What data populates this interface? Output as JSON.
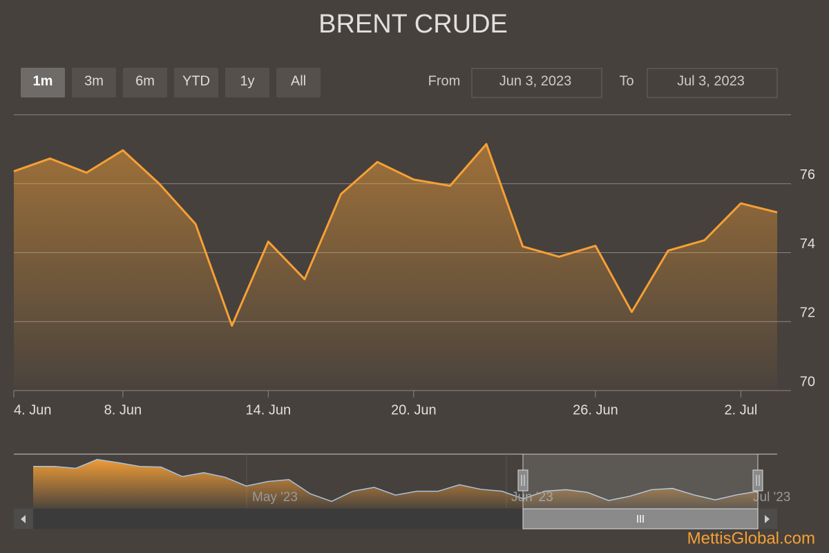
{
  "chart_data": {
    "type": "area",
    "title": "BRENT CRUDE",
    "range_buttons": [
      "1m",
      "3m",
      "6m",
      "YTD",
      "1y",
      "All"
    ],
    "selected_range": 0,
    "from_label": "From",
    "from_date": "Jun 3, 2023",
    "to_label": "To",
    "to_date": "Jul 3, 2023",
    "categories": [
      "4. Jun",
      null,
      null,
      "8. Jun",
      null,
      null,
      null,
      "14. Jun",
      null,
      null,
      null,
      "20. Jun",
      null,
      null,
      null,
      null,
      "26. Jun",
      null,
      null,
      null,
      "2. Jul",
      null
    ],
    "series": [
      {
        "name": "Brent Crude",
        "color": "#f7a035",
        "values": [
          76.36,
          76.73,
          76.32,
          76.97,
          76.0,
          74.83,
          71.88,
          74.32,
          73.23,
          75.7,
          76.63,
          76.12,
          75.94,
          77.15,
          74.18,
          73.88,
          74.2,
          72.28,
          74.06,
          74.36,
          75.43,
          75.17
        ]
      }
    ],
    "ylim": [
      70,
      78
    ],
    "yticks": [
      70,
      72,
      74,
      76
    ],
    "grid": true,
    "navigator": {
      "color": "#a8c4e0",
      "ylim": [
        68,
        92
      ],
      "labels": [
        "May '23",
        "Jun '23",
        "Jul '23"
      ],
      "values": [
        87.3,
        87.3,
        86.4,
        90.5,
        89,
        87.3,
        87,
        82.6,
        84.4,
        82.3,
        78.2,
        80.3,
        81.2,
        74.6,
        71.1,
        75.8,
        77.6,
        74,
        75.8,
        75.8,
        78.8,
        76.7,
        75.8,
        72.3,
        75.8,
        76.5,
        75.3,
        71.5,
        73.5,
        76.5,
        77.1,
        74.1,
        71.8,
        74.1,
        75.8
      ]
    },
    "footer": "MettisGlobal.com"
  }
}
